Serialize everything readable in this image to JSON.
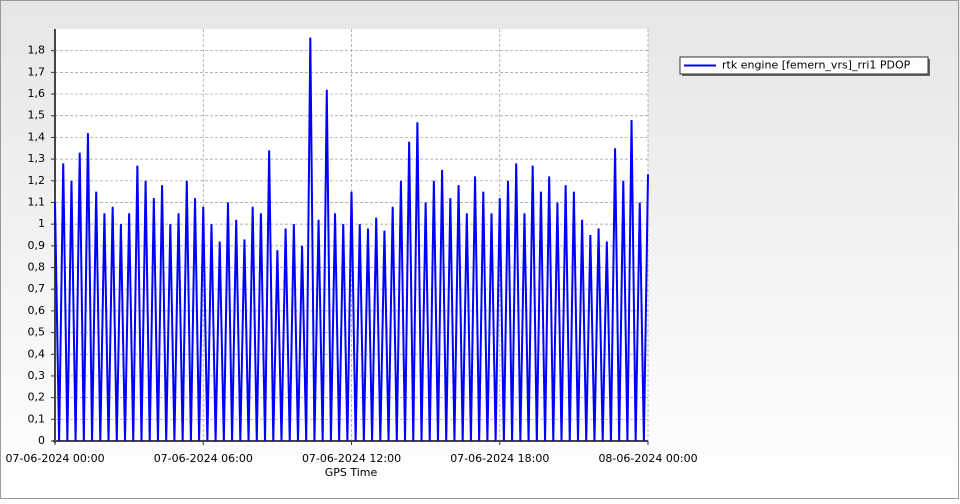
{
  "chart_data": {
    "type": "line",
    "x_label": "GPS Time",
    "x": [
      "2024-06-07T00:00",
      "2024-06-07T00:10",
      "2024-06-07T00:20",
      "2024-06-07T00:30",
      "2024-06-07T00:40",
      "2024-06-07T00:50",
      "2024-06-07T01:00",
      "2024-06-07T01:10",
      "2024-06-07T01:20",
      "2024-06-07T01:30",
      "2024-06-07T01:40",
      "2024-06-07T01:50",
      "2024-06-07T02:00",
      "2024-06-07T02:10",
      "2024-06-07T02:20",
      "2024-06-07T02:30",
      "2024-06-07T02:40",
      "2024-06-07T02:50",
      "2024-06-07T03:00",
      "2024-06-07T03:10",
      "2024-06-07T03:20",
      "2024-06-07T03:30",
      "2024-06-07T03:40",
      "2024-06-07T03:50",
      "2024-06-07T04:00",
      "2024-06-07T04:10",
      "2024-06-07T04:20",
      "2024-06-07T04:30",
      "2024-06-07T04:40",
      "2024-06-07T04:50",
      "2024-06-07T05:00",
      "2024-06-07T05:10",
      "2024-06-07T05:20",
      "2024-06-07T05:30",
      "2024-06-07T05:40",
      "2024-06-07T05:50",
      "2024-06-07T06:00",
      "2024-06-07T06:10",
      "2024-06-07T06:20",
      "2024-06-07T06:30",
      "2024-06-07T06:40",
      "2024-06-07T06:50",
      "2024-06-07T07:00",
      "2024-06-07T07:10",
      "2024-06-07T07:20",
      "2024-06-07T07:30",
      "2024-06-07T07:40",
      "2024-06-07T07:50",
      "2024-06-07T08:00",
      "2024-06-07T08:10",
      "2024-06-07T08:20",
      "2024-06-07T08:30",
      "2024-06-07T08:40",
      "2024-06-07T08:50",
      "2024-06-07T09:00",
      "2024-06-07T09:10",
      "2024-06-07T09:20",
      "2024-06-07T09:30",
      "2024-06-07T09:40",
      "2024-06-07T09:50",
      "2024-06-07T10:00",
      "2024-06-07T10:10",
      "2024-06-07T10:20",
      "2024-06-07T10:30",
      "2024-06-07T10:40",
      "2024-06-07T10:50",
      "2024-06-07T11:00",
      "2024-06-07T11:10",
      "2024-06-07T11:20",
      "2024-06-07T11:30",
      "2024-06-07T11:40",
      "2024-06-07T11:50",
      "2024-06-07T12:00",
      "2024-06-07T12:10",
      "2024-06-07T12:20",
      "2024-06-07T12:30",
      "2024-06-07T12:40",
      "2024-06-07T12:50",
      "2024-06-07T13:00",
      "2024-06-07T13:10",
      "2024-06-07T13:20",
      "2024-06-07T13:30",
      "2024-06-07T13:40",
      "2024-06-07T13:50",
      "2024-06-07T14:00",
      "2024-06-07T14:10",
      "2024-06-07T14:20",
      "2024-06-07T14:30",
      "2024-06-07T14:40",
      "2024-06-07T14:50",
      "2024-06-07T15:00",
      "2024-06-07T15:10",
      "2024-06-07T15:20",
      "2024-06-07T15:30",
      "2024-06-07T15:40",
      "2024-06-07T15:50",
      "2024-06-07T16:00",
      "2024-06-07T16:10",
      "2024-06-07T16:20",
      "2024-06-07T16:30",
      "2024-06-07T16:40",
      "2024-06-07T16:50",
      "2024-06-07T17:00",
      "2024-06-07T17:10",
      "2024-06-07T17:20",
      "2024-06-07T17:30",
      "2024-06-07T17:40",
      "2024-06-07T17:50",
      "2024-06-07T18:00",
      "2024-06-07T18:10",
      "2024-06-07T18:20",
      "2024-06-07T18:30",
      "2024-06-07T18:40",
      "2024-06-07T18:50",
      "2024-06-07T19:00",
      "2024-06-07T19:10",
      "2024-06-07T19:20",
      "2024-06-07T19:30",
      "2024-06-07T19:40",
      "2024-06-07T19:50",
      "2024-06-07T20:00",
      "2024-06-07T20:10",
      "2024-06-07T20:20",
      "2024-06-07T20:30",
      "2024-06-07T20:40",
      "2024-06-07T20:50",
      "2024-06-07T21:00",
      "2024-06-07T21:10",
      "2024-06-07T21:20",
      "2024-06-07T21:30",
      "2024-06-07T21:40",
      "2024-06-07T21:50",
      "2024-06-07T22:00",
      "2024-06-07T22:10",
      "2024-06-07T22:20",
      "2024-06-07T22:30",
      "2024-06-07T22:40",
      "2024-06-07T22:50",
      "2024-06-07T23:00",
      "2024-06-07T23:10",
      "2024-06-07T23:20",
      "2024-06-07T23:30",
      "2024-06-07T23:40",
      "2024-06-07T23:50",
      "2024-06-08T00:00"
    ],
    "series": [
      {
        "name": "rtk engine [femern_vrs]_rri1 PDOP",
        "color": "#0000ff",
        "values": [
          1.1,
          0,
          1.28,
          0,
          1.2,
          0,
          1.33,
          0,
          1.42,
          0,
          1.15,
          0,
          1.05,
          0,
          1.08,
          0,
          1.0,
          0,
          1.05,
          0,
          1.27,
          0,
          1.2,
          0,
          1.12,
          0,
          1.18,
          0,
          1.0,
          0,
          1.05,
          0,
          1.2,
          0,
          1.12,
          0,
          1.08,
          0,
          1.0,
          0,
          0.92,
          0,
          1.1,
          0,
          1.02,
          0,
          0.93,
          0,
          1.08,
          0,
          1.05,
          0,
          1.34,
          0,
          0.88,
          0,
          0.98,
          0,
          1.0,
          0,
          0.9,
          0,
          1.86,
          0,
          1.02,
          0,
          1.62,
          0,
          1.05,
          0,
          1.0,
          0,
          1.15,
          0,
          1.0,
          0,
          0.98,
          0,
          1.03,
          0,
          0.97,
          0,
          1.08,
          0,
          1.2,
          0,
          1.38,
          0,
          1.47,
          0,
          1.1,
          0,
          1.2,
          0,
          1.25,
          0,
          1.12,
          0,
          1.18,
          0,
          1.05,
          0,
          1.22,
          0,
          1.15,
          0,
          1.05,
          0,
          1.12,
          0,
          1.2,
          0,
          1.28,
          0,
          1.05,
          0,
          1.27,
          0,
          1.15,
          0,
          1.22,
          0,
          1.1,
          0,
          1.18,
          0,
          1.15,
          0,
          1.02,
          0,
          0.95,
          0,
          0.98,
          0,
          0.92,
          0,
          1.35,
          0,
          1.2,
          0,
          1.48,
          0,
          1.1,
          0,
          1.23
        ]
      }
    ],
    "xlim": [
      "2024-06-07T00:00",
      "2024-06-08T00:00"
    ],
    "xticks": [
      {
        "value": "2024-06-07T00:00",
        "label": "07-06-2024 00:00"
      },
      {
        "value": "2024-06-07T06:00",
        "label": "07-06-2024 06:00"
      },
      {
        "value": "2024-06-07T12:00",
        "label": "07-06-2024 12:00"
      },
      {
        "value": "2024-06-07T18:00",
        "label": "07-06-2024 18:00"
      },
      {
        "value": "2024-06-08T00:00",
        "label": "08-06-2024 00:00"
      }
    ],
    "ylim": [
      0,
      1.9
    ],
    "yticks": [
      0,
      {
        "value": 0.1,
        "label": "0,1"
      },
      {
        "value": 0.2,
        "label": "0,2"
      },
      {
        "value": 0.3,
        "label": "0,3"
      },
      {
        "value": 0.4,
        "label": "0,4"
      },
      {
        "value": 0.5,
        "label": "0,5"
      },
      {
        "value": 0.6,
        "label": "0,6"
      },
      {
        "value": 0.7,
        "label": "0,7"
      },
      {
        "value": 0.8,
        "label": "0,8"
      },
      {
        "value": 0.9,
        "label": "0,9"
      },
      1,
      {
        "value": 1.1,
        "label": "1,1"
      },
      {
        "value": 1.2,
        "label": "1,2"
      },
      {
        "value": 1.3,
        "label": "1,3"
      },
      {
        "value": 1.4,
        "label": "1,4"
      },
      {
        "value": 1.5,
        "label": "1,5"
      },
      {
        "value": 1.6,
        "label": "1,6"
      },
      {
        "value": 1.7,
        "label": "1,7"
      },
      {
        "value": 1.8,
        "label": "1,8"
      }
    ],
    "grid": true,
    "legend": "top-right"
  }
}
